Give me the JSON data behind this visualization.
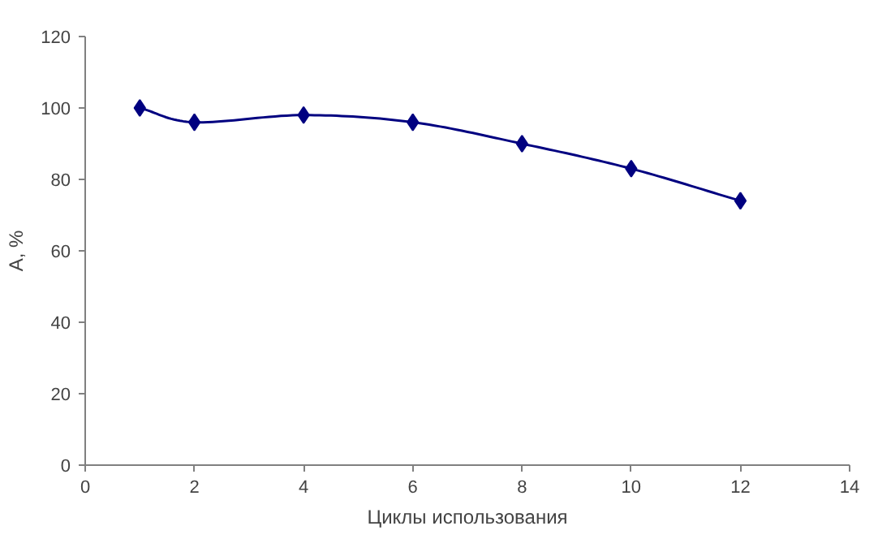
{
  "chart_data": {
    "type": "line",
    "xlabel": "Циклы использования",
    "ylabel": "A, %",
    "x": [
      1,
      2,
      4,
      6,
      8,
      10,
      12
    ],
    "series": [
      {
        "color": "#000080",
        "values": [
          100,
          96,
          98,
          96,
          90,
          83,
          74
        ]
      }
    ],
    "xlim": [
      0,
      14
    ],
    "xticks": [
      0,
      2,
      4,
      6,
      8,
      10,
      12,
      14
    ],
    "ylim": [
      0,
      120
    ],
    "yticks": [
      0,
      20,
      40,
      60,
      80,
      100,
      120
    ],
    "grid": false,
    "marker": "diamond",
    "line_style": "solid"
  }
}
